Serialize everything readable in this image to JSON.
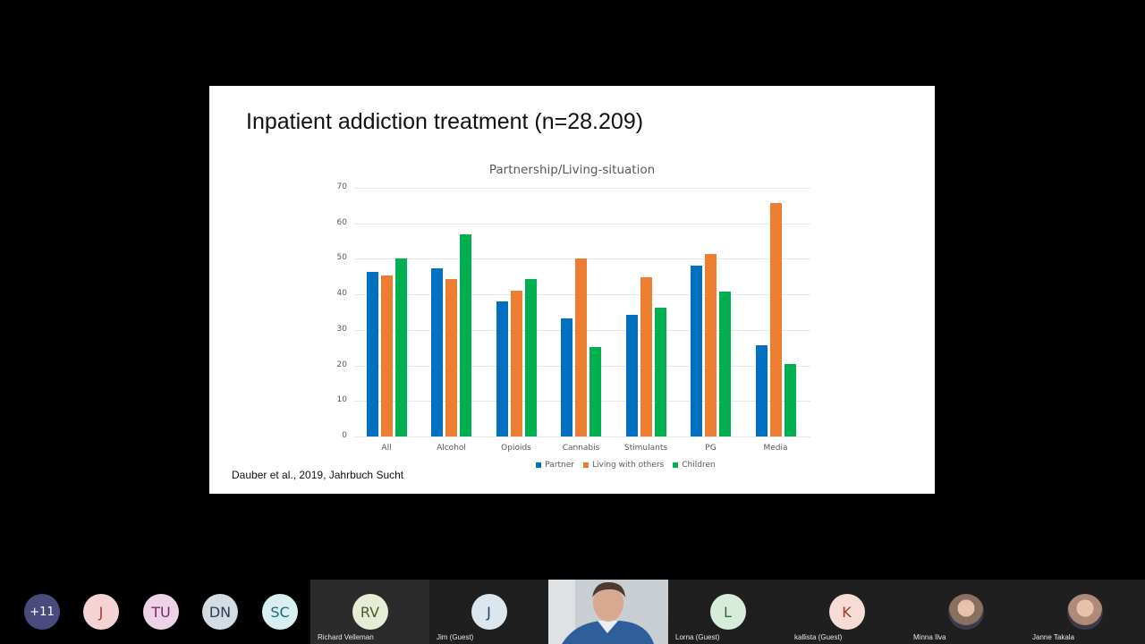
{
  "slide": {
    "title": "Inpatient addiction treatment (n=28.209)",
    "citation": "Dauber et al., 2019, Jahrbuch Sucht"
  },
  "chart_data": {
    "type": "bar",
    "title": "Partnership/Living-situation",
    "xlabel": "",
    "ylabel": "",
    "ylim": [
      0,
      70
    ],
    "yticks": [
      0,
      10,
      20,
      30,
      40,
      50,
      60,
      70
    ],
    "grid": true,
    "legend_position": "bottom",
    "categories": [
      "All",
      "Alcohol",
      "Opioids",
      "Cannabis",
      "Stimulants",
      "PG",
      "Media"
    ],
    "series": [
      {
        "name": "Partner",
        "color": "#0070c0",
        "values": [
          46.3,
          47.4,
          38.0,
          33.2,
          34.3,
          48.2,
          25.6
        ]
      },
      {
        "name": "Living with others",
        "color": "#ed7d31",
        "values": [
          45.3,
          44.3,
          41.0,
          50.1,
          44.9,
          51.3,
          65.7
        ]
      },
      {
        "name": "Children",
        "color": "#00b050",
        "values": [
          50.1,
          57.0,
          44.3,
          25.2,
          36.3,
          40.8,
          20.4
        ]
      }
    ]
  },
  "participants_strip": {
    "overflow": [
      {
        "initials": "+11",
        "bg": "#4b4a7c",
        "fg": "#ffffff"
      },
      {
        "initials": "J",
        "bg": "#f3d3d3",
        "fg": "#a33a3a"
      },
      {
        "initials": "TU",
        "bg": "#eed2e6",
        "fg": "#7a2a66"
      },
      {
        "initials": "DN",
        "bg": "#d3dbe3",
        "fg": "#2f3f52"
      },
      {
        "initials": "SC",
        "bg": "#d8eef0",
        "fg": "#1f6a72"
      }
    ],
    "tiles": [
      {
        "name": "Richard Velleman",
        "initials": "RV",
        "bg": "#e6edd6",
        "fg": "#4a5a2a",
        "tile_bg": "#2b2b2b",
        "video": false
      },
      {
        "name": "Jim (Guest)",
        "initials": "J",
        "bg": "#dce6ee",
        "fg": "#22445e",
        "tile_bg": "#1f1f1f",
        "video": false
      },
      {
        "name": "",
        "initials": "",
        "video": true
      },
      {
        "name": "Lorna (Guest)",
        "initials": "L",
        "bg": "#d7ecdb",
        "fg": "#2b6a3a",
        "tile_bg": "#1f1f1f",
        "video": false
      },
      {
        "name": "kallista (Guest)",
        "initials": "K",
        "bg": "#f6dcd6",
        "fg": "#9a3a2a",
        "tile_bg": "#1f1f1f",
        "video": false
      },
      {
        "name": "Minna Ilva",
        "initials": "",
        "bg": "#8a7060",
        "fg": "#ffffff",
        "tile_bg": "#1f1f1f",
        "video": false,
        "photo": true
      },
      {
        "name": "Janne Takala",
        "initials": "",
        "bg": "#b08a78",
        "fg": "#ffffff",
        "tile_bg": "#1f1f1f",
        "video": false,
        "photo": true
      }
    ]
  }
}
